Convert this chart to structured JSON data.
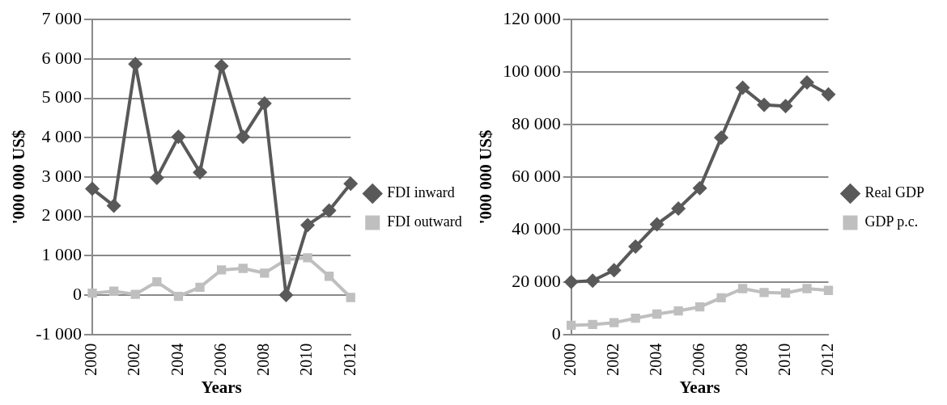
{
  "chart_data": [
    {
      "type": "line",
      "xlabel": "Years",
      "ylabel": "'000 000 US$",
      "categories": [
        "2000",
        null,
        "2002",
        null,
        "2004",
        null,
        "2006",
        null,
        "2008",
        null,
        "2010",
        null,
        "2012"
      ],
      "series": [
        {
          "name": "FDI inward",
          "color": "#595959",
          "marker": "diamond",
          "values": [
            2700,
            2270,
            5870,
            2980,
            4020,
            3120,
            5820,
            4020,
            4870,
            0,
            1780,
            2150,
            2830
          ]
        },
        {
          "name": "FDI outward",
          "color": "#bfbfbf",
          "marker": "square",
          "values": [
            50,
            100,
            20,
            340,
            -30,
            200,
            640,
            680,
            560,
            900,
            950,
            480,
            -60
          ]
        }
      ],
      "ylim": [
        -1000,
        7000
      ],
      "yticks": [
        {
          "value": -1000,
          "label": "-1 000"
        },
        {
          "value": 0,
          "label": "0"
        },
        {
          "value": 1000,
          "label": "1 000"
        },
        {
          "value": 2000,
          "label": "2 000"
        },
        {
          "value": 3000,
          "label": "3 000"
        },
        {
          "value": 4000,
          "label": "4 000"
        },
        {
          "value": 5000,
          "label": "5 000"
        },
        {
          "value": 6000,
          "label": "6 000"
        },
        {
          "value": 7000,
          "label": "7 000"
        }
      ],
      "grid": "y",
      "legend": "right"
    },
    {
      "type": "line",
      "xlabel": "Years",
      "ylabel": "'000 000 US$",
      "categories": [
        "2000",
        null,
        "2002",
        null,
        "2004",
        null,
        "2006",
        null,
        "2008",
        null,
        "2010",
        null,
        "2012"
      ],
      "series": [
        {
          "name": "Real GDP",
          "color": "#595959",
          "marker": "diamond",
          "values": [
            20000,
            20500,
            24500,
            33500,
            42000,
            48000,
            55800,
            75000,
            94000,
            87500,
            87000,
            96000,
            91500
          ]
        },
        {
          "name": "GDP p.c.",
          "color": "#bfbfbf",
          "marker": "square",
          "values": [
            3500,
            3800,
            4500,
            6200,
            7800,
            9000,
            10500,
            14000,
            17500,
            16000,
            15800,
            17500,
            16800
          ]
        }
      ],
      "ylim": [
        0,
        120000
      ],
      "yticks": [
        {
          "value": 0,
          "label": "0"
        },
        {
          "value": 20000,
          "label": "20 000"
        },
        {
          "value": 40000,
          "label": "40 000"
        },
        {
          "value": 60000,
          "label": "60 000"
        },
        {
          "value": 80000,
          "label": "80 000"
        },
        {
          "value": 100000,
          "label": "100 000"
        },
        {
          "value": 120000,
          "label": "120 000"
        }
      ],
      "grid": "y",
      "legend": "right"
    }
  ]
}
